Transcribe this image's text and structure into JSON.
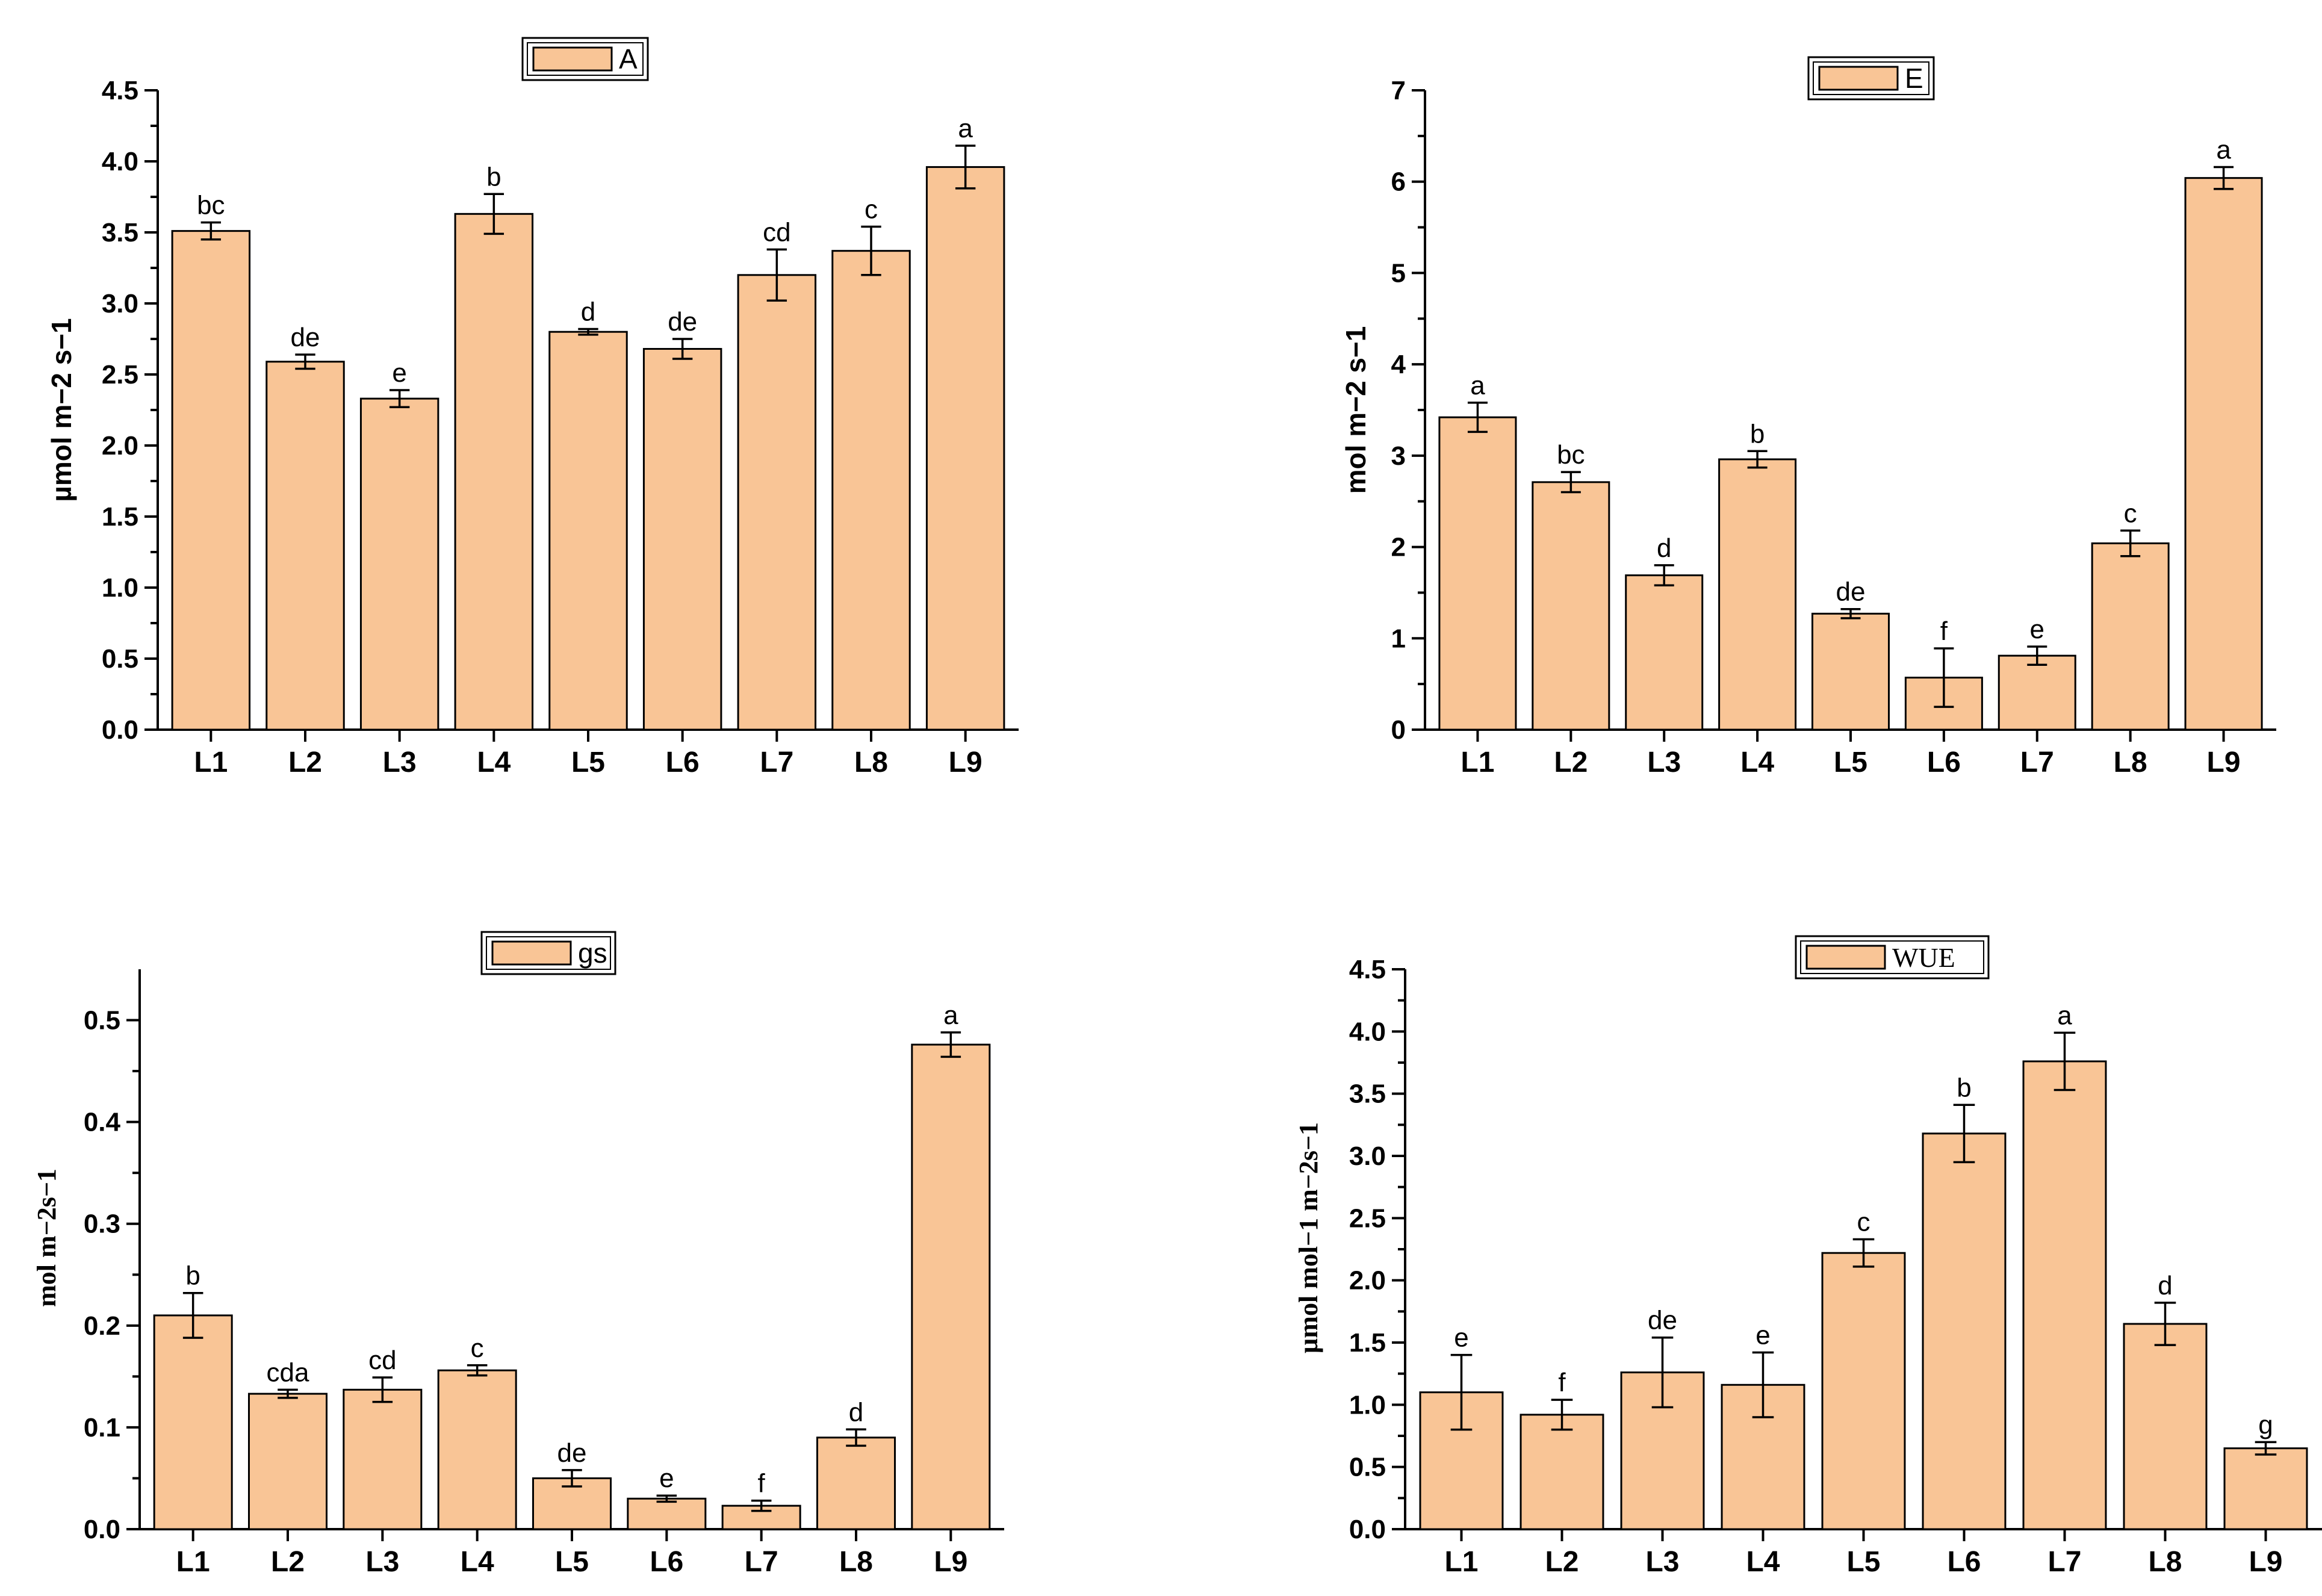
{
  "colors": {
    "bar": "#f9c596",
    "axis": "#000000"
  },
  "chart_data": [
    {
      "type": "bar",
      "legend": "A",
      "ylabel_html": "µmol m<tspan baseline-shift=\"super\" font-size=\"32\">−2</tspan> s<tspan baseline-shift=\"super\" font-size=\"32\">−1</tspan>",
      "ylabel": "µmol m−2 s−1",
      "categories": [
        "L1",
        "L2",
        "L3",
        "L4",
        "L5",
        "L6",
        "L7",
        "L8",
        "L9"
      ],
      "values": [
        3.51,
        2.59,
        2.33,
        3.63,
        2.8,
        2.68,
        3.2,
        3.37,
        3.96
      ],
      "errors": [
        0.06,
        0.05,
        0.06,
        0.14,
        0.02,
        0.07,
        0.18,
        0.17,
        0.15
      ],
      "letters": [
        "bc",
        "de",
        "e",
        "b",
        "d",
        "de",
        "cd",
        "c",
        "a"
      ],
      "ylim": [
        0,
        4.5
      ],
      "yticks": [
        "0.0",
        "0.5",
        "1.0",
        "1.5",
        "2.0",
        "2.5",
        "3.0",
        "3.5",
        "4.0",
        "4.5"
      ]
    },
    {
      "type": "bar",
      "legend": "E",
      "ylabel": "mol m−2 s−1",
      "categories": [
        "L1",
        "L2",
        "L3",
        "L4",
        "L5",
        "L6",
        "L7",
        "L8",
        "L9"
      ],
      "values": [
        3.42,
        2.71,
        1.69,
        2.96,
        1.27,
        0.57,
        0.81,
        2.04,
        6.04
      ],
      "errors": [
        0.16,
        0.11,
        0.11,
        0.09,
        0.05,
        0.32,
        0.1,
        0.14,
        0.12
      ],
      "letters": [
        "a",
        "bc",
        "d",
        "b",
        "de",
        "f",
        "e",
        "c",
        "a"
      ],
      "ylim": [
        0,
        7
      ],
      "yticks": [
        "0",
        "1",
        "2",
        "3",
        "4",
        "5",
        "6",
        "7"
      ]
    },
    {
      "type": "bar",
      "legend": "gs",
      "ylabel": "mol m−2s−1",
      "categories": [
        "L1",
        "L2",
        "L3",
        "L4",
        "L5",
        "L6",
        "L7",
        "L8",
        "L9"
      ],
      "values": [
        0.21,
        0.133,
        0.137,
        0.156,
        0.05,
        0.03,
        0.023,
        0.09,
        0.476
      ],
      "errors": [
        0.022,
        0.004,
        0.012,
        0.005,
        0.008,
        0.003,
        0.005,
        0.008,
        0.012
      ],
      "letters": [
        "b",
        "cda",
        "cd",
        "c",
        "de",
        "e",
        "f",
        "d",
        "a"
      ],
      "ylim": [
        0,
        0.55
      ],
      "yticks": [
        "0.0",
        "0.1",
        "0.2",
        "0.3",
        "0.4",
        "0.5"
      ]
    },
    {
      "type": "bar",
      "legend": "WUE",
      "ylabel": "µmol mol−1 m−2s−1",
      "categories": [
        "L1",
        "L2",
        "L3",
        "L4",
        "L5",
        "L6",
        "L7",
        "L8",
        "L9"
      ],
      "values": [
        1.1,
        0.92,
        1.26,
        1.16,
        2.22,
        3.18,
        3.76,
        1.65,
        0.65
      ],
      "errors": [
        0.3,
        0.12,
        0.28,
        0.26,
        0.11,
        0.23,
        0.23,
        0.17,
        0.05
      ],
      "letters": [
        "e",
        "f",
        "de",
        "e",
        "c",
        "b",
        "a",
        "d",
        "g"
      ],
      "ylim": [
        0,
        4.5
      ],
      "yticks": [
        "0.0",
        "0.5",
        "1.0",
        "1.5",
        "2.0",
        "2.5",
        "3.0",
        "3.5",
        "4.0",
        "4.5"
      ]
    }
  ]
}
